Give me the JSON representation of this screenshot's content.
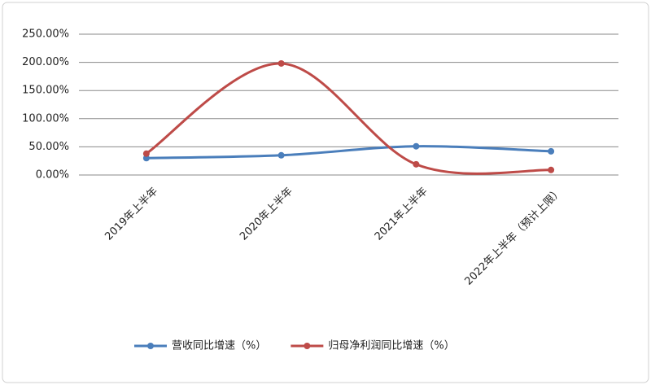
{
  "chart_data": {
    "type": "line",
    "categories": [
      "2019年上半年",
      "2020年上半年",
      "2021年上半年",
      "2022年上半年（预计上限）"
    ],
    "series": [
      {
        "name": "营收同比增速（%）",
        "color": "#4a7ebb",
        "values": [
          30,
          35,
          51,
          42
        ]
      },
      {
        "name": "归母净利润同比增速（%）",
        "color": "#be4b48",
        "values": [
          38,
          198,
          19,
          9
        ]
      }
    ],
    "ylim": [
      0,
      250
    ],
    "yticks": [
      {
        "value": 0,
        "label": "0.00%"
      },
      {
        "value": 50,
        "label": "50.00%"
      },
      {
        "value": 100,
        "label": "100.00%"
      },
      {
        "value": 150,
        "label": "150.00%"
      },
      {
        "value": 200,
        "label": "200.00%"
      },
      {
        "value": 250,
        "label": "250.00%"
      }
    ],
    "grid": true,
    "smooth": true,
    "legend": "bottom"
  }
}
